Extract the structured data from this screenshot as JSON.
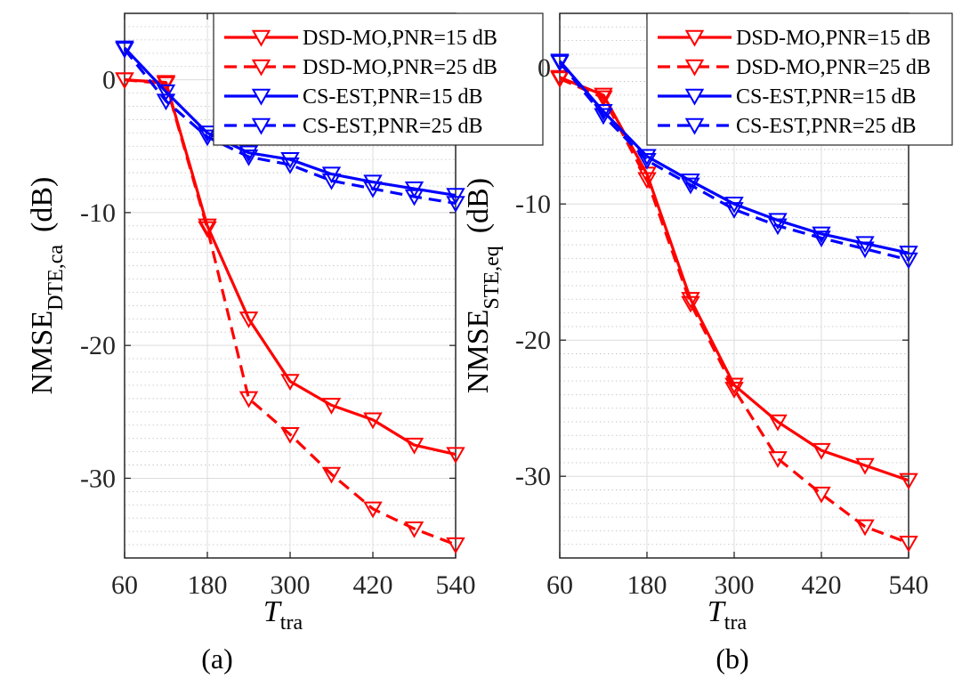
{
  "chart_data": [
    {
      "type": "line",
      "panel": "a",
      "caption": "(a)",
      "ylabel_main": "NMSE",
      "ylabel_sub": "DTE,ca",
      "ylabel_unit": "(dB)",
      "xlabel_main": "T",
      "xlabel_sub": "tra",
      "xlim": [
        60,
        540
      ],
      "ylim": [
        -36,
        5
      ],
      "xticks": [
        60,
        180,
        300,
        420,
        540
      ],
      "xtick_labels": [
        "60",
        "180",
        "300",
        "420",
        "540"
      ],
      "yticks": [
        0,
        -10,
        -20,
        -30
      ],
      "ytick_labels": [
        "0",
        "-10",
        "-20",
        "-30"
      ],
      "minor_yticks": [
        4,
        3,
        2,
        1,
        -1,
        -2,
        -3,
        -4,
        -5,
        -6,
        -7,
        -8,
        -9,
        -11,
        -12,
        -13,
        -14,
        -15,
        -16,
        -17,
        -18,
        -19,
        -21,
        -22,
        -23,
        -24,
        -25,
        -26,
        -27,
        -28,
        -29,
        -31,
        -32,
        -33,
        -34,
        -35
      ],
      "grid": true,
      "legend_position": "top-right",
      "x": [
        60,
        120,
        180,
        240,
        300,
        360,
        420,
        480,
        540
      ],
      "series": [
        {
          "name": "DSD-MO,PNR=15 dB",
          "color": "#ff0000",
          "dash": "solid",
          "values": [
            0,
            -0.2,
            -11,
            -18,
            -22.7,
            -24.5,
            -25.6,
            -27.5,
            -28.2
          ]
        },
        {
          "name": "DSD-MO,PNR=25 dB",
          "color": "#ff0000",
          "dash": "dashed",
          "values": [
            0,
            -0.3,
            -11.2,
            -24,
            -26.7,
            -29.7,
            -32.3,
            -33.8,
            -35
          ]
        },
        {
          "name": "CS-EST,PNR=15 dB",
          "color": "#0000ff",
          "dash": "solid",
          "values": [
            2.4,
            -0.9,
            -4,
            -5.5,
            -6,
            -7.1,
            -7.7,
            -8.2,
            -8.7
          ]
        },
        {
          "name": "CS-EST,PNR=25 dB",
          "color": "#0000ff",
          "dash": "dashed",
          "values": [
            2.3,
            -1.6,
            -4.3,
            -5.8,
            -6.4,
            -7.6,
            -8.2,
            -8.8,
            -9.3
          ]
        }
      ]
    },
    {
      "type": "line",
      "panel": "b",
      "caption": "(b)",
      "ylabel_main": "NMSE",
      "ylabel_sub": "STE,eq",
      "ylabel_unit": "(dB)",
      "xlabel_main": "T",
      "xlabel_sub": "tra",
      "xlim": [
        60,
        540
      ],
      "ylim": [
        -36,
        4
      ],
      "xticks": [
        60,
        180,
        300,
        420,
        540
      ],
      "xtick_labels": [
        "60",
        "180",
        "300",
        "420",
        "540"
      ],
      "yticks": [
        0,
        -10,
        -20,
        -30
      ],
      "ytick_labels": [
        "0",
        "-10",
        "-20",
        "-30"
      ],
      "minor_yticks": [
        3,
        2,
        1,
        -1,
        -2,
        -3,
        -4,
        -5,
        -6,
        -7,
        -8,
        -9,
        -11,
        -12,
        -13,
        -14,
        -15,
        -16,
        -17,
        -18,
        -19,
        -21,
        -22,
        -23,
        -24,
        -25,
        -26,
        -27,
        -28,
        -29,
        -31,
        -32,
        -33,
        -34,
        -35
      ],
      "grid": true,
      "legend_position": "top-right",
      "x": [
        60,
        120,
        180,
        240,
        300,
        360,
        420,
        480,
        540
      ],
      "series": [
        {
          "name": "DSD-MO,PNR=15 dB",
          "color": "#ff0000",
          "dash": "solid",
          "values": [
            -0.7,
            -2,
            -7.8,
            -17,
            -23.3,
            -26,
            -28.1,
            -29.2,
            -30.3
          ]
        },
        {
          "name": "DSD-MO,PNR=25 dB",
          "color": "#ff0000",
          "dash": "dashed",
          "values": [
            -0.8,
            -2.2,
            -8.2,
            -17.3,
            -23.6,
            -28.7,
            -31.3,
            -33.7,
            -34.9
          ]
        },
        {
          "name": "CS-EST,PNR=15 dB",
          "color": "#0000ff",
          "dash": "solid",
          "values": [
            0.5,
            -3.2,
            -6.5,
            -8.3,
            -10,
            -11.2,
            -12.2,
            -12.9,
            -13.6
          ]
        },
        {
          "name": "CS-EST,PNR=25 dB",
          "color": "#0000ff",
          "dash": "dashed",
          "values": [
            0.4,
            -3.5,
            -6.8,
            -8.6,
            -10.4,
            -11.6,
            -12.5,
            -13.3,
            -14.1
          ]
        }
      ]
    }
  ]
}
